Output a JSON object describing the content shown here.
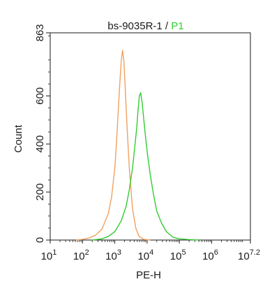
{
  "chart_data": {
    "type": "line",
    "title": {
      "sample": "bs-9035R-1",
      "separator": " / ",
      "gate": "P1"
    },
    "xlabel": "PE-H",
    "ylabel": "Count",
    "x_scale": "log",
    "xlim_log10": [
      1,
      7.2
    ],
    "ylim": [
      0,
      863
    ],
    "x_ticks": [
      {
        "log10": 1,
        "base": "10",
        "exp": "1"
      },
      {
        "log10": 2,
        "base": "10",
        "exp": "2"
      },
      {
        "log10": 3,
        "base": "10",
        "exp": "3"
      },
      {
        "log10": 4,
        "base": "10",
        "exp": "4"
      },
      {
        "log10": 5,
        "base": "10",
        "exp": "5"
      },
      {
        "log10": 6,
        "base": "10",
        "exp": "6"
      },
      {
        "log10": 7.2,
        "base": "10",
        "exp": "7.2"
      }
    ],
    "y_ticks": [
      {
        "value": 0,
        "label": "0"
      },
      {
        "value": 200,
        "label": "200"
      },
      {
        "value": 400,
        "label": "400"
      },
      {
        "value": 600,
        "label": "600"
      },
      {
        "value": 863,
        "label": "863"
      }
    ],
    "series": [
      {
        "color": "#f0a060",
        "points": [
          [
            1.8,
            0
          ],
          [
            2.0,
            3
          ],
          [
            2.2,
            8
          ],
          [
            2.4,
            20
          ],
          [
            2.6,
            45
          ],
          [
            2.8,
            110
          ],
          [
            2.9,
            180
          ],
          [
            3.0,
            300
          ],
          [
            3.05,
            400
          ],
          [
            3.1,
            520
          ],
          [
            3.15,
            640
          ],
          [
            3.2,
            745
          ],
          [
            3.24,
            790
          ],
          [
            3.28,
            750
          ],
          [
            3.32,
            640
          ],
          [
            3.38,
            470
          ],
          [
            3.45,
            300
          ],
          [
            3.55,
            130
          ],
          [
            3.65,
            50
          ],
          [
            3.75,
            15
          ],
          [
            3.9,
            3
          ],
          [
            4.1,
            0
          ]
        ]
      },
      {
        "color": "#33cc33",
        "points": [
          [
            2.3,
            0
          ],
          [
            2.6,
            5
          ],
          [
            2.8,
            15
          ],
          [
            3.0,
            35
          ],
          [
            3.2,
            80
          ],
          [
            3.35,
            140
          ],
          [
            3.45,
            210
          ],
          [
            3.55,
            300
          ],
          [
            3.62,
            390
          ],
          [
            3.68,
            470
          ],
          [
            3.72,
            540
          ],
          [
            3.76,
            600
          ],
          [
            3.8,
            613
          ],
          [
            3.84,
            580
          ],
          [
            3.9,
            500
          ],
          [
            3.96,
            420
          ],
          [
            4.02,
            350
          ],
          [
            4.1,
            270
          ],
          [
            4.2,
            190
          ],
          [
            4.3,
            120
          ],
          [
            4.45,
            70
          ],
          [
            4.6,
            35
          ],
          [
            4.8,
            12
          ],
          [
            5.0,
            5
          ],
          [
            5.3,
            2
          ],
          [
            5.6,
            0
          ]
        ]
      }
    ]
  }
}
